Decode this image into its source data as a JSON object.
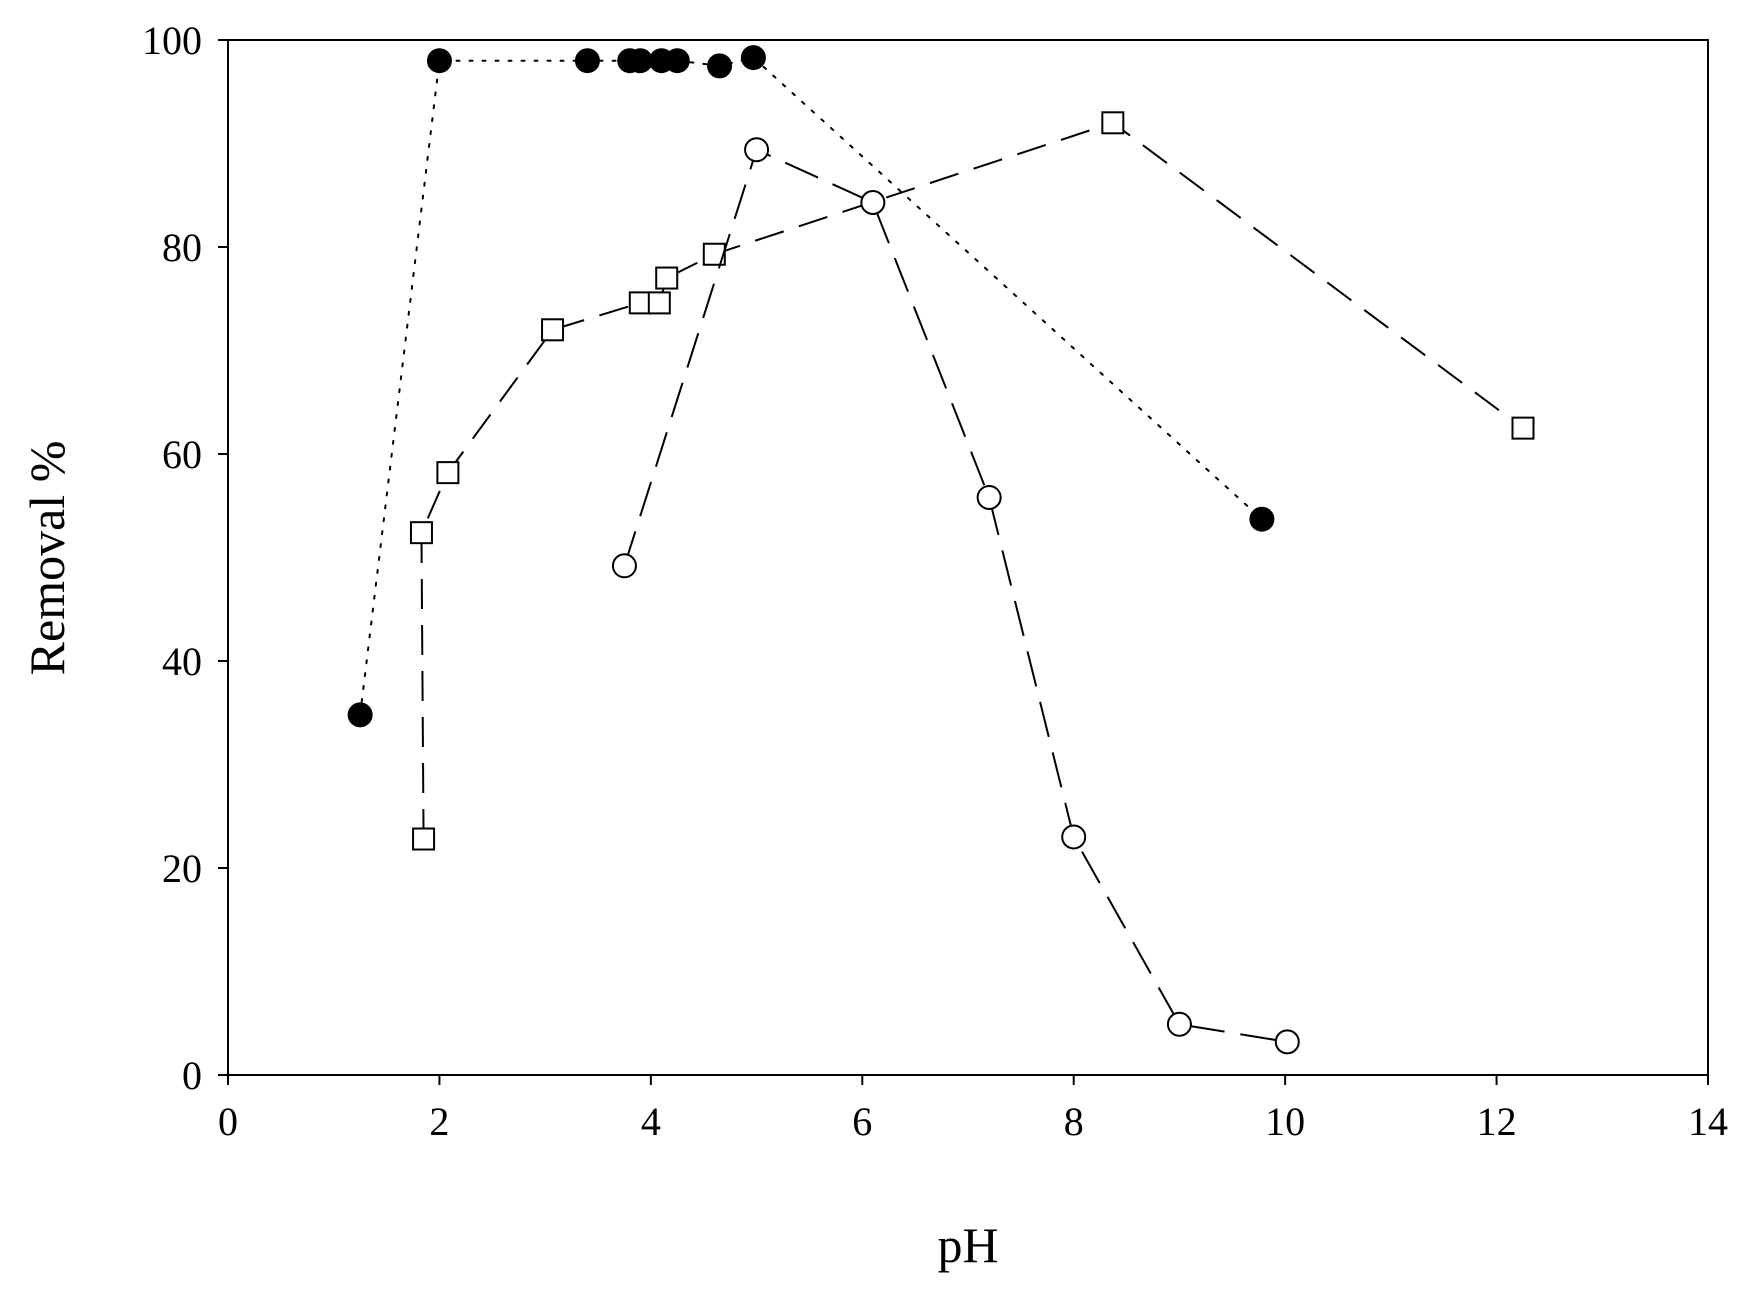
{
  "chart_data": {
    "type": "line",
    "xlabel": "pH",
    "ylabel": "Removal %",
    "xlim": [
      0,
      14
    ],
    "ylim": [
      0,
      100
    ],
    "xticks": [
      "0",
      "2",
      "4",
      "6",
      "8",
      "10",
      "12",
      "14"
    ],
    "yticks": [
      "0",
      "20",
      "40",
      "60",
      "80",
      "100"
    ],
    "grid": false,
    "legend": "none",
    "series": [
      {
        "marker": "filled-circle",
        "line_style": "dotted",
        "color": "#000000",
        "points": [
          {
            "x": 1.25,
            "y": 34.8
          },
          {
            "x": 2.0,
            "y": 98.0
          },
          {
            "x": 3.4,
            "y": 98.0
          },
          {
            "x": 3.8,
            "y": 98.0
          },
          {
            "x": 3.9,
            "y": 98.0
          },
          {
            "x": 4.1,
            "y": 98.0
          },
          {
            "x": 4.25,
            "y": 98.0
          },
          {
            "x": 4.65,
            "y": 97.5
          },
          {
            "x": 4.97,
            "y": 98.3
          },
          {
            "x": 9.78,
            "y": 53.7
          }
        ]
      },
      {
        "marker": "open-square",
        "line_style": "dashed-medium",
        "color": "#000000",
        "points": [
          {
            "x": 1.85,
            "y": 22.8
          },
          {
            "x": 1.83,
            "y": 52.4
          },
          {
            "x": 2.08,
            "y": 58.2
          },
          {
            "x": 3.07,
            "y": 72.0
          },
          {
            "x": 3.9,
            "y": 74.6
          },
          {
            "x": 4.08,
            "y": 74.6
          },
          {
            "x": 4.15,
            "y": 77.0
          },
          {
            "x": 4.6,
            "y": 79.3
          },
          {
            "x": 8.37,
            "y": 92.0
          },
          {
            "x": 12.25,
            "y": 62.5
          }
        ]
      },
      {
        "marker": "open-circle",
        "line_style": "dashed-long",
        "color": "#000000",
        "points": [
          {
            "x": 3.75,
            "y": 49.2
          },
          {
            "x": 5.0,
            "y": 89.4
          },
          {
            "x": 6.1,
            "y": 84.3
          },
          {
            "x": 7.2,
            "y": 55.8
          },
          {
            "x": 8.0,
            "y": 23.0
          },
          {
            "x": 9.0,
            "y": 4.9
          },
          {
            "x": 10.02,
            "y": 3.2
          }
        ]
      }
    ]
  }
}
